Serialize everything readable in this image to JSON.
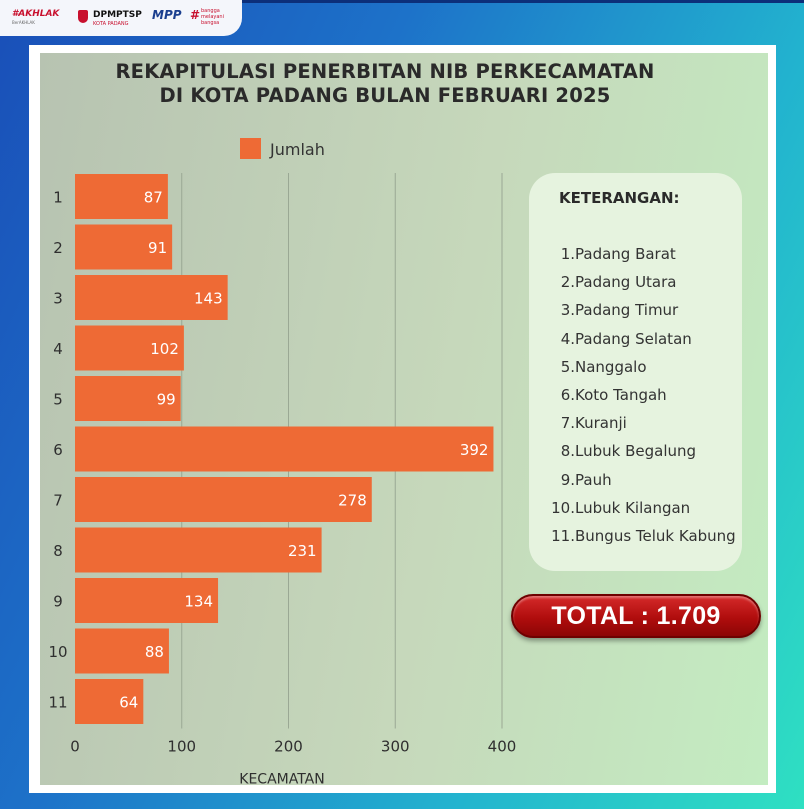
{
  "header": {
    "logos": [
      {
        "name": "akhlak-logo",
        "text": "#AKHLAK"
      },
      {
        "name": "dpmptsp-logo",
        "text": "DPMPTSP",
        "sub": "KOTA PADANG"
      },
      {
        "name": "mpp-logo",
        "text": "MPP"
      },
      {
        "name": "bangga-logo",
        "text": "#",
        "sub": "bangga melayani bangsa"
      }
    ]
  },
  "chart_data": {
    "type": "bar",
    "orientation": "horizontal",
    "title": "REKAPITULASI PENERBITAN NIB PERKECAMATAN",
    "subtitle": "DI KOTA PADANG BULAN FEBRUARI 2025",
    "categories": [
      "1",
      "2",
      "3",
      "4",
      "5",
      "6",
      "7",
      "8",
      "9",
      "10",
      "11"
    ],
    "series": [
      {
        "name": "Jumlah",
        "values": [
          87,
          91,
          143,
          102,
          99,
          392,
          278,
          231,
          134,
          88,
          64
        ]
      }
    ],
    "xlabel": "KECAMATAN",
    "ylabel": "",
    "xlim": [
      0,
      400
    ],
    "xticks": [
      0,
      100,
      200,
      300,
      400
    ],
    "grid": true,
    "legend": "top",
    "bar_color": "#ee6a35"
  },
  "keterangan": {
    "title": "KETERANGAN:",
    "items": [
      {
        "num": "1.",
        "label": "Padang Barat"
      },
      {
        "num": "2.",
        "label": "Padang Utara"
      },
      {
        "num": "3.",
        "label": "Padang Timur"
      },
      {
        "num": "4.",
        "label": "Padang Selatan"
      },
      {
        "num": "5.",
        "label": "Nanggalo"
      },
      {
        "num": "6.",
        "label": "Koto Tangah"
      },
      {
        "num": "7.",
        "label": "Kuranji"
      },
      {
        "num": "8.",
        "label": "Lubuk Begalung"
      },
      {
        "num": "9.",
        "label": "Pauh"
      },
      {
        "num": "10.",
        "label": "Lubuk Kilangan"
      },
      {
        "num": "11.",
        "label": "Bungus Teluk Kabung"
      }
    ]
  },
  "total": {
    "text": "TOTAL : 1.709"
  }
}
